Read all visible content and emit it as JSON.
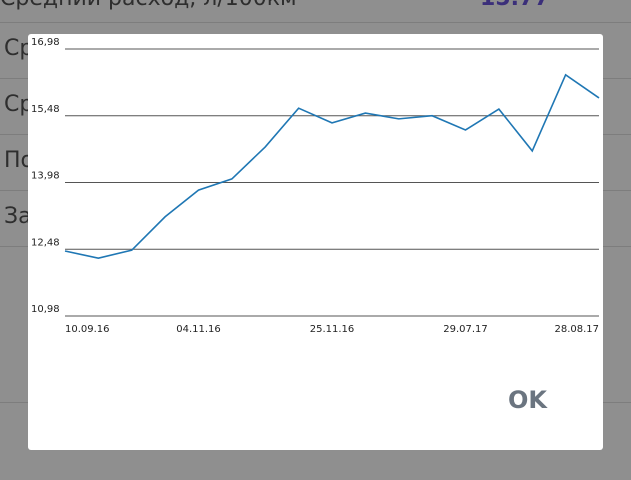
{
  "background": {
    "header_title": "Средний расход, л/100км",
    "header_value": "15.77",
    "rows": [
      "Ср",
      "Ср",
      "По",
      "За"
    ]
  },
  "dialog": {
    "button": "OK"
  },
  "chart_data": {
    "type": "line",
    "categories": [
      "10.09.16",
      null,
      null,
      null,
      "04.11.16",
      null,
      null,
      null,
      "25.11.16",
      null,
      null,
      null,
      "29.07.17",
      null,
      null,
      null,
      "28.08.17"
    ],
    "series": [
      {
        "color": "#1f77b4",
        "values": [
          12.44,
          12.28,
          12.46,
          13.21,
          13.81,
          14.06,
          14.78,
          15.65,
          15.32,
          15.54,
          15.41,
          15.48,
          15.16,
          15.63,
          14.69,
          16.4,
          15.88
        ]
      }
    ],
    "ylim": [
      10.98,
      16.98
    ],
    "yticks": [
      {
        "value": 10.98,
        "label": "10,98"
      },
      {
        "value": 12.48,
        "label": "12,48"
      },
      {
        "value": 13.98,
        "label": "13,98"
      },
      {
        "value": 15.48,
        "label": "15,48"
      },
      {
        "value": 16.98,
        "label": "16,98"
      }
    ],
    "grid": true
  }
}
